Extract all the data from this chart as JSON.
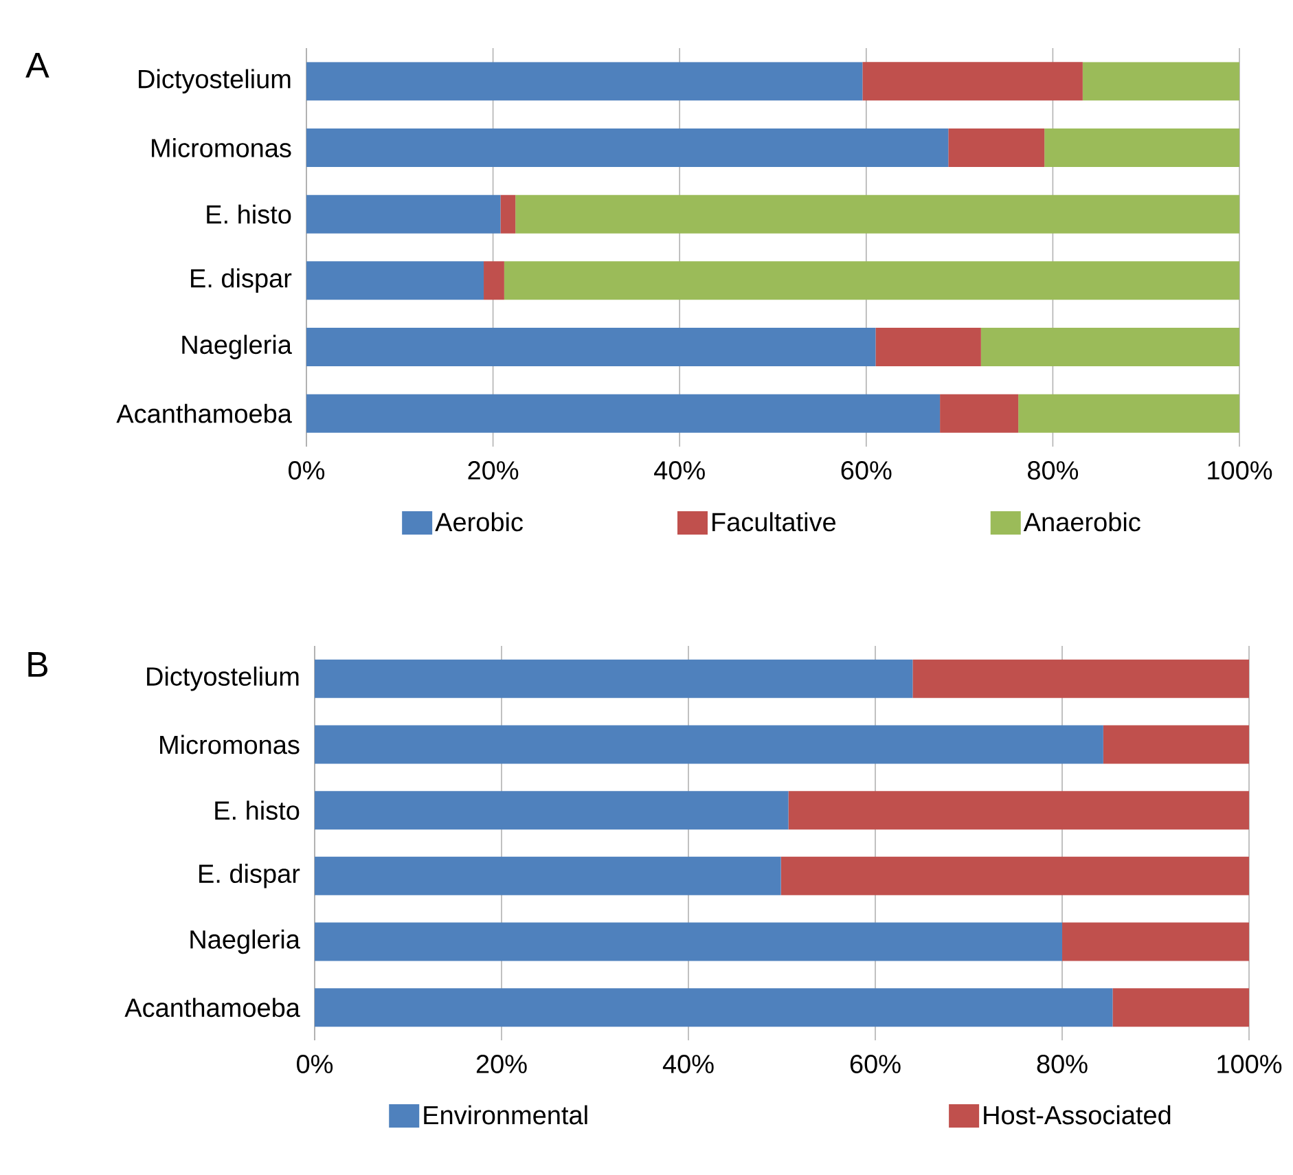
{
  "chart_data": [
    {
      "type": "bar",
      "title": "A",
      "orientation": "horizontal",
      "stacked": true,
      "grid": "x",
      "legend": "bottom",
      "categories": [
        "Dictyostelium",
        "Micromonas",
        "E. histo",
        "E. dispar",
        "Naegleria",
        "Acanthamoeba"
      ],
      "series": [
        {
          "name": "Aerobic",
          "color": "#4f81bd",
          "values": [
            59.6,
            68.8,
            20.8,
            19.0,
            61.0,
            67.9
          ]
        },
        {
          "name": "Facultative",
          "color": "#c0504d",
          "values": [
            23.6,
            10.3,
            1.6,
            2.2,
            11.3,
            8.4
          ]
        },
        {
          "name": "Anaerobic",
          "color": "#9bbb59",
          "values": [
            16.8,
            20.9,
            77.6,
            78.8,
            27.7,
            23.7
          ]
        }
      ],
      "xlim": [
        0,
        100
      ],
      "xticks": [
        {
          "value": 0,
          "label": "0%"
        },
        {
          "value": 20,
          "label": "20%"
        },
        {
          "value": 40,
          "label": "40%"
        },
        {
          "value": 60,
          "label": "60%"
        },
        {
          "value": 80,
          "label": "80%"
        },
        {
          "value": 100,
          "label": "100%"
        }
      ]
    },
    {
      "type": "bar",
      "title": "B",
      "orientation": "horizontal",
      "stacked": true,
      "grid": "x",
      "legend": "bottom",
      "categories": [
        "Dictyostelium",
        "Micromonas",
        "E. histo",
        "E. dispar",
        "Naegleria",
        "Acanthamoeba"
      ],
      "series": [
        {
          "name": "Environmental",
          "color": "#4f81bd",
          "values": [
            64.0,
            84.4,
            50.7,
            49.9,
            80.0,
            85.4
          ]
        },
        {
          "name": "Host-Associated",
          "color": "#c0504d",
          "values": [
            36.0,
            15.6,
            49.3,
            50.1,
            20.0,
            14.6
          ]
        }
      ],
      "xlim": [
        0,
        100
      ],
      "xticks": [
        {
          "value": 0,
          "label": "0%"
        },
        {
          "value": 20,
          "label": "20%"
        },
        {
          "value": 40,
          "label": "40%"
        },
        {
          "value": 60,
          "label": "60%"
        },
        {
          "value": 80,
          "label": "80%"
        },
        {
          "value": 100,
          "label": "100%"
        }
      ]
    }
  ]
}
